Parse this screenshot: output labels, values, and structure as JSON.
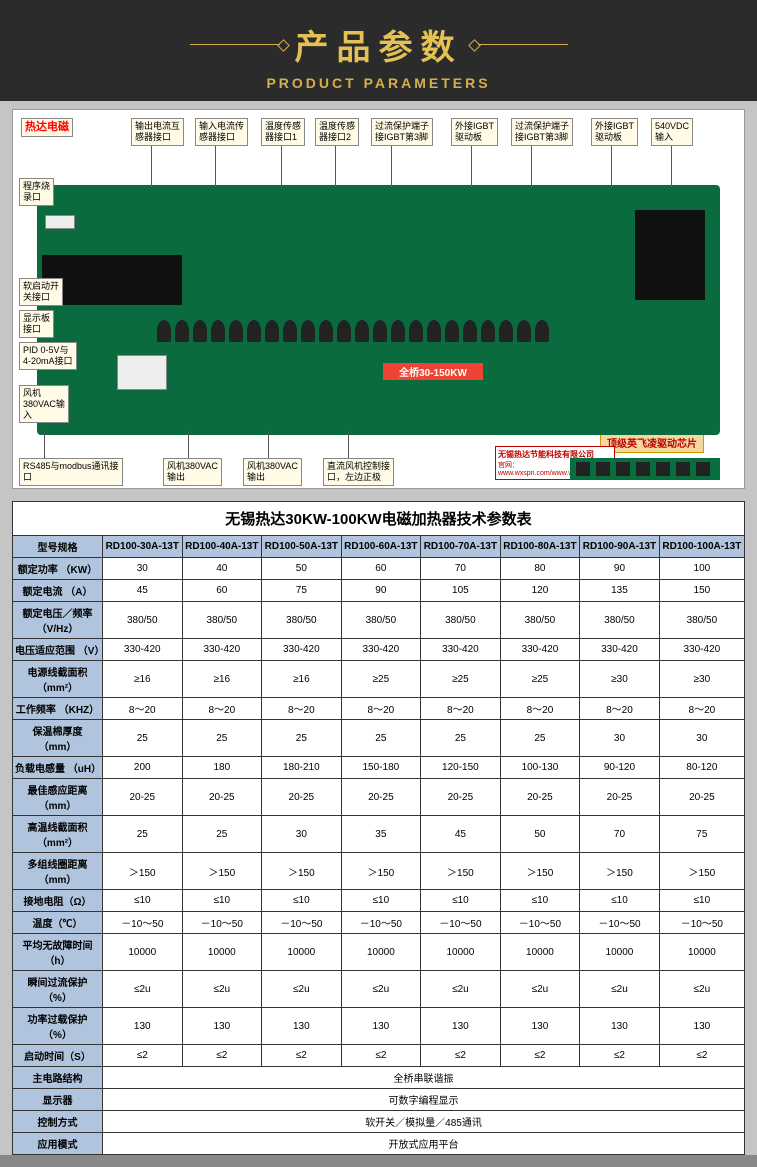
{
  "header": {
    "title_cn": "产品参数",
    "title_en": "PRODUCT PARAMETERS"
  },
  "labels": {
    "brand": "热达电磁",
    "top": [
      "输出电流互\n感器接口",
      "输入电流传\n感器接口",
      "温度传感\n器接口1",
      "温度传感\n器接口2",
      "过流保护端子\n接IGBT第3脚",
      "外接IGBT\n驱动板",
      "过流保护端子\n接IGBT第3脚",
      "外接IGBT\n驱动板",
      "540VDC\n输入"
    ],
    "left": [
      "程序烧\n录口",
      "软启动开\n关接口",
      "显示板\n接口",
      "PID 0-5V与\n4-20mA接口",
      "风机\n380VAC输\n入"
    ],
    "bottom": [
      "RS485与modbus通讯接\n口",
      "风机380VAC\n输出",
      "风机380VAC\n输出",
      "直流风机控制接\n口，左边正极"
    ],
    "center_box": "全桥30-150KW",
    "orange_banner": "顶级英飞凌驱动芯片",
    "company": "无锡热达节能科技有限公司",
    "company_url": "官网：www.wxspn.com/www.wxreda.com"
  },
  "table": {
    "title": "无锡热达30KW-100KW电磁加热器技术参数表",
    "header_row_label": "型号规格",
    "models": [
      "RD100-30A-13T",
      "RD100-40A-13T",
      "RD100-50A-13T",
      "RD100-60A-13T",
      "RD100-70A-13T",
      "RD100-80A-13T",
      "RD100-90A-13T",
      "RD100-100A-13T"
    ],
    "rows": [
      {
        "label": "额定功率\n（KW）",
        "cells": [
          "30",
          "40",
          "50",
          "60",
          "70",
          "80",
          "90",
          "100"
        ]
      },
      {
        "label": "额定电流\n（A）",
        "cells": [
          "45",
          "60",
          "75",
          "90",
          "105",
          "120",
          "135",
          "150"
        ]
      },
      {
        "label": "额定电压／频率\n（V/Hz）",
        "cells": [
          "380/50",
          "380/50",
          "380/50",
          "380/50",
          "380/50",
          "380/50",
          "380/50",
          "380/50"
        ]
      },
      {
        "label": "电压适应范围\n（V）",
        "cells": [
          "330-420",
          "330-420",
          "330-420",
          "330-420",
          "330-420",
          "330-420",
          "330-420",
          "330-420"
        ]
      },
      {
        "label": "电源线截面积\n（mm²）",
        "cells": [
          "≥16",
          "≥16",
          "≥16",
          "≥25",
          "≥25",
          "≥25",
          "≥30",
          "≥30"
        ]
      },
      {
        "label": "工作频率\n（KHZ）",
        "cells": [
          "8～20",
          "8～20",
          "8～20",
          "8～20",
          "8～20",
          "8～20",
          "8～20",
          "8～20"
        ]
      },
      {
        "label": "保温棉厚度\n（mm）",
        "cells": [
          "25",
          "25",
          "25",
          "25",
          "25",
          "25",
          "30",
          "30"
        ]
      },
      {
        "label": "负载电感量\n（uH）",
        "cells": [
          "200",
          "180",
          "180-210",
          "150-180",
          "120-150",
          "100-130",
          "90-120",
          "80-120"
        ]
      },
      {
        "label": "最佳感应距离\n（mm）",
        "cells": [
          "20-25",
          "20-25",
          "20-25",
          "20-25",
          "20-25",
          "20-25",
          "20-25",
          "20-25"
        ]
      },
      {
        "label": "高温线截面积\n（mm²）",
        "cells": [
          "25",
          "25",
          "30",
          "35",
          "45",
          "50",
          "70",
          "75"
        ]
      },
      {
        "label": "多组线圈距离\n（mm）",
        "cells": [
          "＞150",
          "＞150",
          "＞150",
          "＞150",
          "＞150",
          "＞150",
          "＞150",
          "＞150"
        ]
      },
      {
        "label": "接地电阻（Ω）",
        "cells": [
          "≤10",
          "≤10",
          "≤10",
          "≤10",
          "≤10",
          "≤10",
          "≤10",
          "≤10"
        ]
      },
      {
        "label": "温度（℃）",
        "cells": [
          "－10～50",
          "－10～50",
          "－10～50",
          "－10～50",
          "－10～50",
          "－10～50",
          "－10～50",
          "－10～50"
        ]
      },
      {
        "label": "平均无故障时间\n（h）",
        "cells": [
          "10000",
          "10000",
          "10000",
          "10000",
          "10000",
          "10000",
          "10000",
          "10000"
        ]
      },
      {
        "label": "瞬间过流保护\n（%）",
        "cells": [
          "≤2u",
          "≤2u",
          "≤2u",
          "≤2u",
          "≤2u",
          "≤2u",
          "≤2u",
          "≤2u"
        ]
      },
      {
        "label": "功率过载保护\n（%）",
        "cells": [
          "130",
          "130",
          "130",
          "130",
          "130",
          "130",
          "130",
          "130"
        ]
      },
      {
        "label": "启动时间（S）",
        "cells": [
          "≤2",
          "≤2",
          "≤2",
          "≤2",
          "≤2",
          "≤2",
          "≤2",
          "≤2"
        ]
      }
    ],
    "full_rows": [
      {
        "label": "主电路结构",
        "value": "全桥串联谐振"
      },
      {
        "label": "显示器",
        "value": "可数字编程显示"
      },
      {
        "label": "控制方式",
        "value": "软开关／模拟量／485通讯"
      },
      {
        "label": "应用模式",
        "value": "开放式应用平台"
      }
    ]
  }
}
